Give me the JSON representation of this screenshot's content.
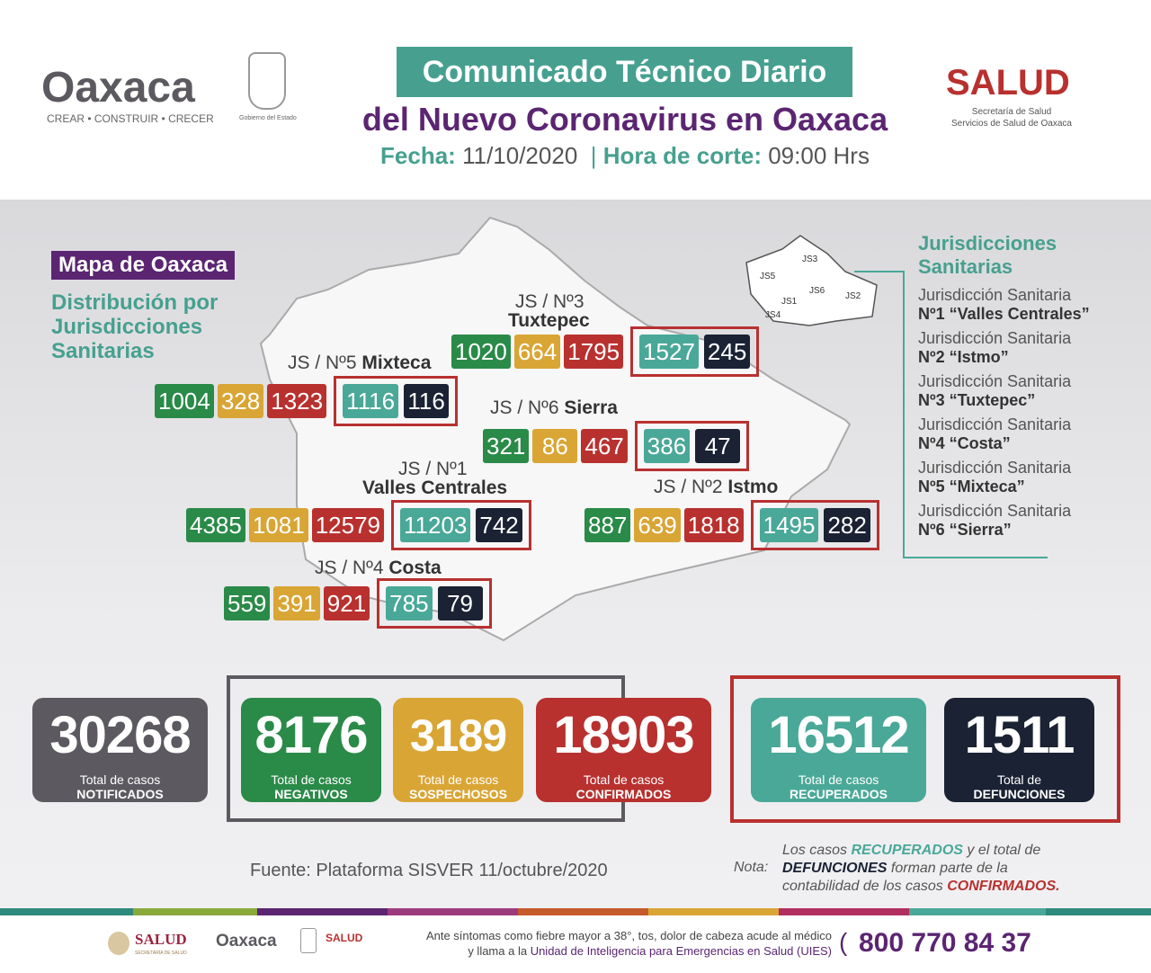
{
  "header": {
    "logo_text": "Oaxaca",
    "tagline": "CREAR • CONSTRUIR • CRECER",
    "gobierno": "Gobierno del Estado",
    "title1": "Comunicado Técnico Diario",
    "title2": "del Nuevo Coronavirus en Oaxaca",
    "fecha_label": "Fecha:",
    "fecha": "11/10/2020",
    "hora_label": "Hora de corte:",
    "hora": "09:00 Hrs",
    "salud": "SALUD",
    "salud_sub1": "Secretaría de Salud",
    "salud_sub2": "Servicios de Salud de Oaxaca"
  },
  "map": {
    "title": "Mapa de Oaxaca",
    "subtitle": [
      "Distribución por",
      "Jurisdicciones",
      "Sanitarias"
    ],
    "inset_labels": [
      "JS3",
      "JS5",
      "JS6",
      "JS1",
      "JS2",
      "JS4"
    ]
  },
  "jurisdictions": [
    {
      "label": "JS / Nº3",
      "name": "Tuxtepec",
      "negativos": "1020",
      "sospechosos": "664",
      "confirmados": "1795",
      "recuperados": "1527",
      "defunciones": "245"
    },
    {
      "label": "JS / Nº5",
      "name": "Mixteca",
      "negativos": "1004",
      "sospechosos": "328",
      "confirmados": "1323",
      "recuperados": "1116",
      "defunciones": "116"
    },
    {
      "label": "JS / Nº6",
      "name": "Sierra",
      "negativos": "321",
      "sospechosos": "86",
      "confirmados": "467",
      "recuperados": "386",
      "defunciones": "47"
    },
    {
      "label": "JS / Nº1",
      "name": "Valles Centrales",
      "negativos": "4385",
      "sospechosos": "1081",
      "confirmados": "12579",
      "recuperados": "11203",
      "defunciones": "742"
    },
    {
      "label": "JS / Nº2",
      "name": "Istmo",
      "negativos": "887",
      "sospechosos": "639",
      "confirmados": "1818",
      "recuperados": "1495",
      "defunciones": "282"
    },
    {
      "label": "JS / Nº4",
      "name": "Costa",
      "negativos": "559",
      "sospechosos": "391",
      "confirmados": "921",
      "recuperados": "785",
      "defunciones": "79"
    }
  ],
  "legend": {
    "title": [
      "Jurisdicciones",
      "Sanitarias"
    ],
    "items": [
      {
        "l1": "Jurisdicción Sanitaria",
        "l2": "Nº1 “Valles Centrales”"
      },
      {
        "l1": "Jurisdicción Sanitaria",
        "l2": "Nº2 “Istmo”"
      },
      {
        "l1": "Jurisdicción Sanitaria",
        "l2": "Nº3 “Tuxtepec”"
      },
      {
        "l1": "Jurisdicción Sanitaria",
        "l2": "Nº4 “Costa”"
      },
      {
        "l1": "Jurisdicción Sanitaria",
        "l2": "Nº5 “Mixteca”"
      },
      {
        "l1": "Jurisdicción Sanitaria",
        "l2": "Nº6 “Sierra”"
      }
    ]
  },
  "totals": [
    {
      "value": "30268",
      "l1": "Total de casos",
      "l2": "NOTIFICADOS",
      "color": "#5c5a60"
    },
    {
      "value": "8176",
      "l1": "Total de casos",
      "l2": "NEGATIVOS",
      "color": "#2a8a48"
    },
    {
      "value": "3189",
      "l1": "Total de casos",
      "l2": "SOSPECHOSOS",
      "color": "#d9a535"
    },
    {
      "value": "18903",
      "l1": "Total de casos",
      "l2": "CONFIRMADOS",
      "color": "#b8312f"
    },
    {
      "value": "16512",
      "l1": "Total de casos",
      "l2": "RECUPERADOS",
      "color": "#4aa898"
    },
    {
      "value": "1511",
      "l1": "Total de",
      "l2": "DEFUNCIONES",
      "color": "#1a2233"
    }
  ],
  "source": "Fuente: Plataforma SISVER 11/octubre/2020",
  "note": {
    "label": "Nota:",
    "p1": "Los casos ",
    "recuperados": "RECUPERADOS",
    "p2": " y el total de",
    "defunciones": "DEFUNCIONES",
    "p3": " forman parte de la",
    "p4": "contabilidad de los casos ",
    "confirmados": "CONFIRMADOS."
  },
  "footer": {
    "salud": "SALUD",
    "salud_sub": "SECRETARÍA DE SALUD",
    "oaxaca": "Oaxaca",
    "salud2": "SALUD",
    "msg1": "Ante síntomas como fiebre mayor a 38°, tos, dolor de cabeza acude al médico",
    "msg2a": "y llama a la ",
    "msg2b": "Unidad de Inteligencia para Emergencias en Salud (UIES)",
    "phone": "800 770 84 37"
  }
}
